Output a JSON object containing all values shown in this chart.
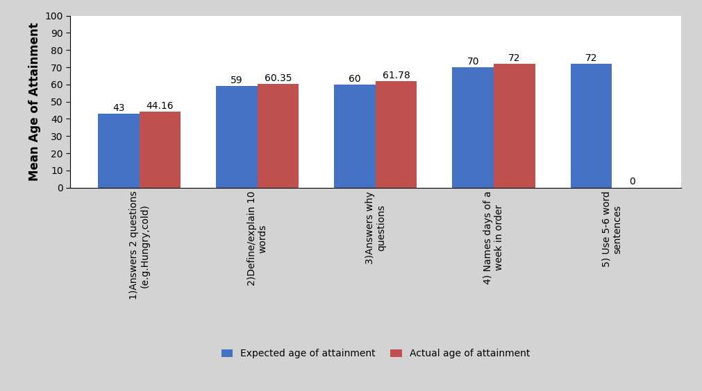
{
  "categories": [
    "1)Answers 2 questions\n(e.g.Hungry,cold)",
    "2)Define/explain 10\nwords",
    "3)Answers why\nquestions",
    "4) Names days of a\nweek in order",
    "5) Use 5-6 word\nsentences"
  ],
  "expected": [
    43,
    59,
    60,
    70,
    72
  ],
  "actual": [
    44.16,
    60.35,
    61.78,
    72,
    0
  ],
  "expected_labels": [
    "43",
    "59",
    "60",
    "70",
    "72"
  ],
  "actual_labels": [
    "44.16",
    "60.35",
    "61.78",
    "72",
    "0"
  ],
  "expected_color": "#4472C4",
  "actual_color": "#C0504D",
  "ylabel": "Mean Age of Attainment",
  "ylim": [
    0,
    100
  ],
  "yticks": [
    0,
    10,
    20,
    30,
    40,
    50,
    60,
    70,
    80,
    90,
    100
  ],
  "legend_expected": "Expected age of attainment",
  "legend_actual": "Actual age of attainment",
  "background_color": "#D3D3D3",
  "plot_bg_color": "#FFFFFF",
  "bar_width": 0.35,
  "label_fontsize": 10,
  "axis_label_fontsize": 12,
  "tick_fontsize": 10
}
